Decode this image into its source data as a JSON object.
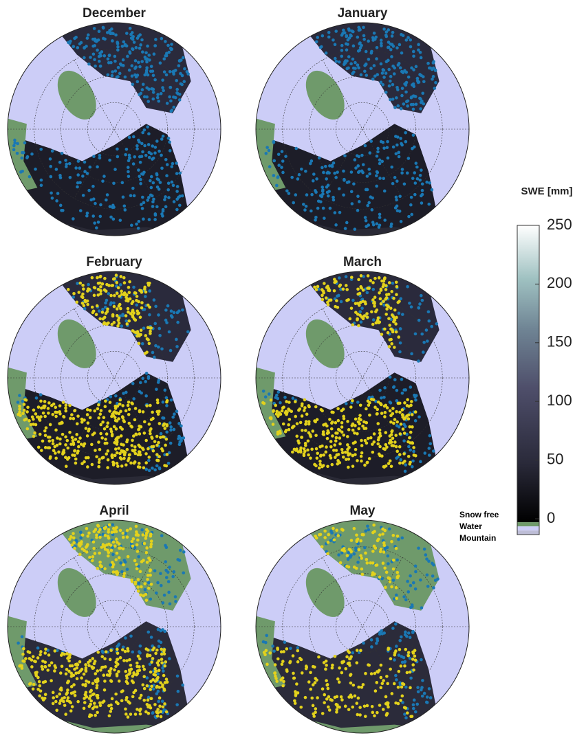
{
  "panels": [
    {
      "title": "December"
    },
    {
      "title": "January"
    },
    {
      "title": "February"
    },
    {
      "title": "March"
    },
    {
      "title": "April"
    },
    {
      "title": "May"
    }
  ],
  "colorbar": {
    "title": "SWE [mm]",
    "lim": [
      -3,
      250
    ],
    "ticks": [
      0,
      50,
      100,
      150,
      200,
      250
    ]
  },
  "legend": [
    {
      "label": "Snow free",
      "color": "#6f9a6b"
    },
    {
      "label": "Water",
      "color": "#cccdf7"
    },
    {
      "label": "Mountain",
      "color": "#bdbdd6"
    }
  ]
}
